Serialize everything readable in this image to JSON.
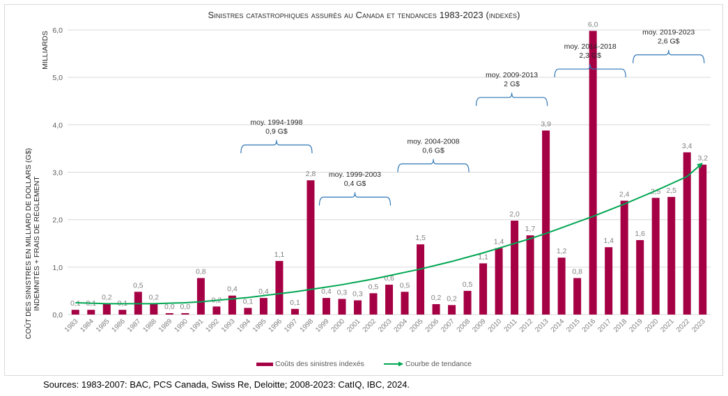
{
  "chart_data": {
    "type": "bar",
    "title": "Sinistres catastrophiques assurés au Canada et tendances 1983-2023 (indexés)",
    "xlabel": "",
    "ylabel": "Coût des sinistres en milliard de dollars (G$) indemnités + frais de règlement",
    "ylabel_lines": [
      "COÛT DES SINISTRES EN MILLIARD DE DOLLARS (G$)",
      "INDEMNITÉS + FRAIS DE RÈGLEMENT"
    ],
    "unit_label": "MILLIARDS",
    "ylim": [
      0,
      6
    ],
    "yticks": [
      "0,0",
      "1,0",
      "2,0",
      "3,0",
      "4,0",
      "5,0",
      "6,0"
    ],
    "grid": true,
    "legend_position": "bottom",
    "categories": [
      "1983",
      "1984",
      "1985",
      "1986",
      "1987",
      "1988",
      "1989",
      "1990",
      "1991",
      "1992",
      "1993",
      "1994",
      "1995",
      "1996",
      "1997",
      "1998",
      "1999",
      "2000",
      "2001",
      "2002",
      "2003",
      "2004",
      "2005",
      "2006",
      "2007",
      "2008",
      "2009",
      "2010",
      "2011",
      "2012",
      "2013",
      "2014",
      "2015",
      "2016",
      "2017",
      "2018",
      "2019",
      "2020",
      "2021",
      "2022",
      "2023"
    ],
    "series": [
      {
        "name": "Coûts des sinistres indexés",
        "type": "bar",
        "color": "#a50044",
        "values": [
          0.1,
          0.1,
          0.23,
          0.1,
          0.48,
          0.23,
          0.03,
          0.03,
          0.77,
          0.17,
          0.4,
          0.14,
          0.35,
          1.13,
          0.12,
          2.83,
          0.35,
          0.33,
          0.3,
          0.45,
          0.63,
          0.48,
          1.48,
          0.22,
          0.2,
          0.5,
          1.08,
          1.4,
          1.98,
          1.67,
          3.88,
          1.2,
          0.77,
          5.98,
          1.42,
          2.4,
          1.57,
          2.46,
          2.48,
          3.42,
          3.16
        ],
        "labels": [
          "0,1",
          "0,1",
          "0,2",
          "0,1",
          "0,5",
          "0,2",
          "0,0",
          "0,0",
          "0,8",
          "0,2",
          "0,4",
          "0,1",
          "0,4",
          "1,1",
          "0,1",
          "2,8",
          "0,4",
          "0,3",
          "0,3",
          "0,5",
          "0,6",
          "0,5",
          "1,5",
          "0,2",
          "0,2",
          "0,5",
          "1,1",
          "1,4",
          "2,0",
          "1,7",
          "3,9",
          "1,2",
          "0,8",
          "6,0",
          "1,4",
          "2,4",
          "1,6",
          "2,5",
          "2,5",
          "3,4",
          "3,2"
        ]
      },
      {
        "name": "Courbe de tendance",
        "type": "line",
        "color": "#00a651",
        "arrow_end": true,
        "values": [
          0.25,
          0.24,
          0.23,
          0.23,
          0.23,
          0.23,
          0.24,
          0.25,
          0.27,
          0.3,
          0.33,
          0.36,
          0.4,
          0.44,
          0.48,
          0.53,
          0.58,
          0.63,
          0.69,
          0.75,
          0.82,
          0.89,
          0.96,
          1.04,
          1.12,
          1.21,
          1.3,
          1.4,
          1.5,
          1.6,
          1.71,
          1.83,
          1.95,
          2.07,
          2.2,
          2.33,
          2.47,
          2.61,
          2.76,
          2.91,
          3.2
        ]
      }
    ],
    "annotations": [
      {
        "line1": "moy. 1994-1998",
        "line2": "0,9 G$",
        "from": "1994",
        "to": "1998",
        "level": 3.4
      },
      {
        "line1": "moy. 1999-2003",
        "line2": "0,4 G$",
        "from": "1999",
        "to": "2003",
        "level": 2.3
      },
      {
        "line1": "moy. 2004-2008",
        "line2": "0,6 G$",
        "from": "2004",
        "to": "2008",
        "level": 3.0
      },
      {
        "line1": "moy. 2009-2013",
        "line2": "2 G$",
        "from": "2009",
        "to": "2013",
        "level": 4.4
      },
      {
        "line1": "moy. 2014-2018",
        "line2": "2,3 G$",
        "from": "2014",
        "to": "2018",
        "level": 5.0
      },
      {
        "line1": "moy. 2019-2023",
        "line2": "2,6 G$",
        "from": "2019",
        "to": "2023",
        "level": 5.3
      }
    ]
  },
  "legend": {
    "bar_label": "Coûts des sinistres indexés",
    "line_label": "Courbe de tendance"
  },
  "source_note": "Sources: 1983-2007: BAC, PCS Canada, Swiss Re, Deloitte; 2008-2023: CatIQ, IBC, 2024."
}
